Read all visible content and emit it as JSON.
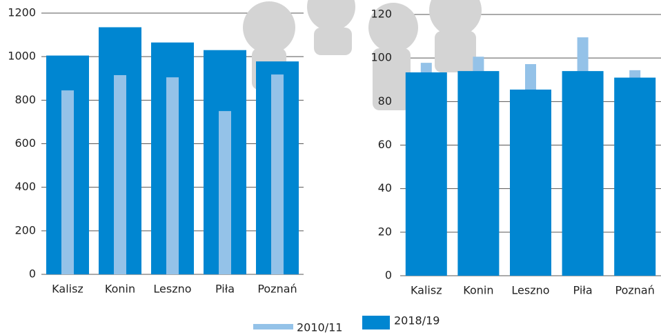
{
  "chart_data": [
    {
      "type": "bar",
      "categories": [
        "Kalisz",
        "Konin",
        "Leszno",
        "Piła",
        "Poznań"
      ],
      "series": [
        {
          "name": "2018/19",
          "color": "#0086d1",
          "values": [
            1005,
            1135,
            1065,
            1030,
            978
          ]
        },
        {
          "name": "2010/11",
          "color": "#94c2e8",
          "values": [
            845,
            915,
            905,
            750,
            918
          ]
        }
      ],
      "ylim": [
        0,
        1200
      ],
      "yticks": [
        0,
        200,
        400,
        600,
        800,
        1000,
        1200
      ],
      "grid": true
    },
    {
      "type": "bar",
      "categories": [
        "Kalisz",
        "Konin",
        "Leszno",
        "Piła",
        "Poznań"
      ],
      "series": [
        {
          "name": "2010/11",
          "color": "#94c2e8",
          "values": [
            97.8,
            100.6,
            97.2,
            109.5,
            94.4
          ]
        },
        {
          "name": "2018/19",
          "color": "#0086d1",
          "values": [
            93.4,
            94,
            85.5,
            94,
            91
          ]
        }
      ],
      "ylim": [
        0,
        120
      ],
      "yticks": [
        0,
        20,
        40,
        60,
        80,
        100,
        120
      ],
      "grid": true
    }
  ]
}
